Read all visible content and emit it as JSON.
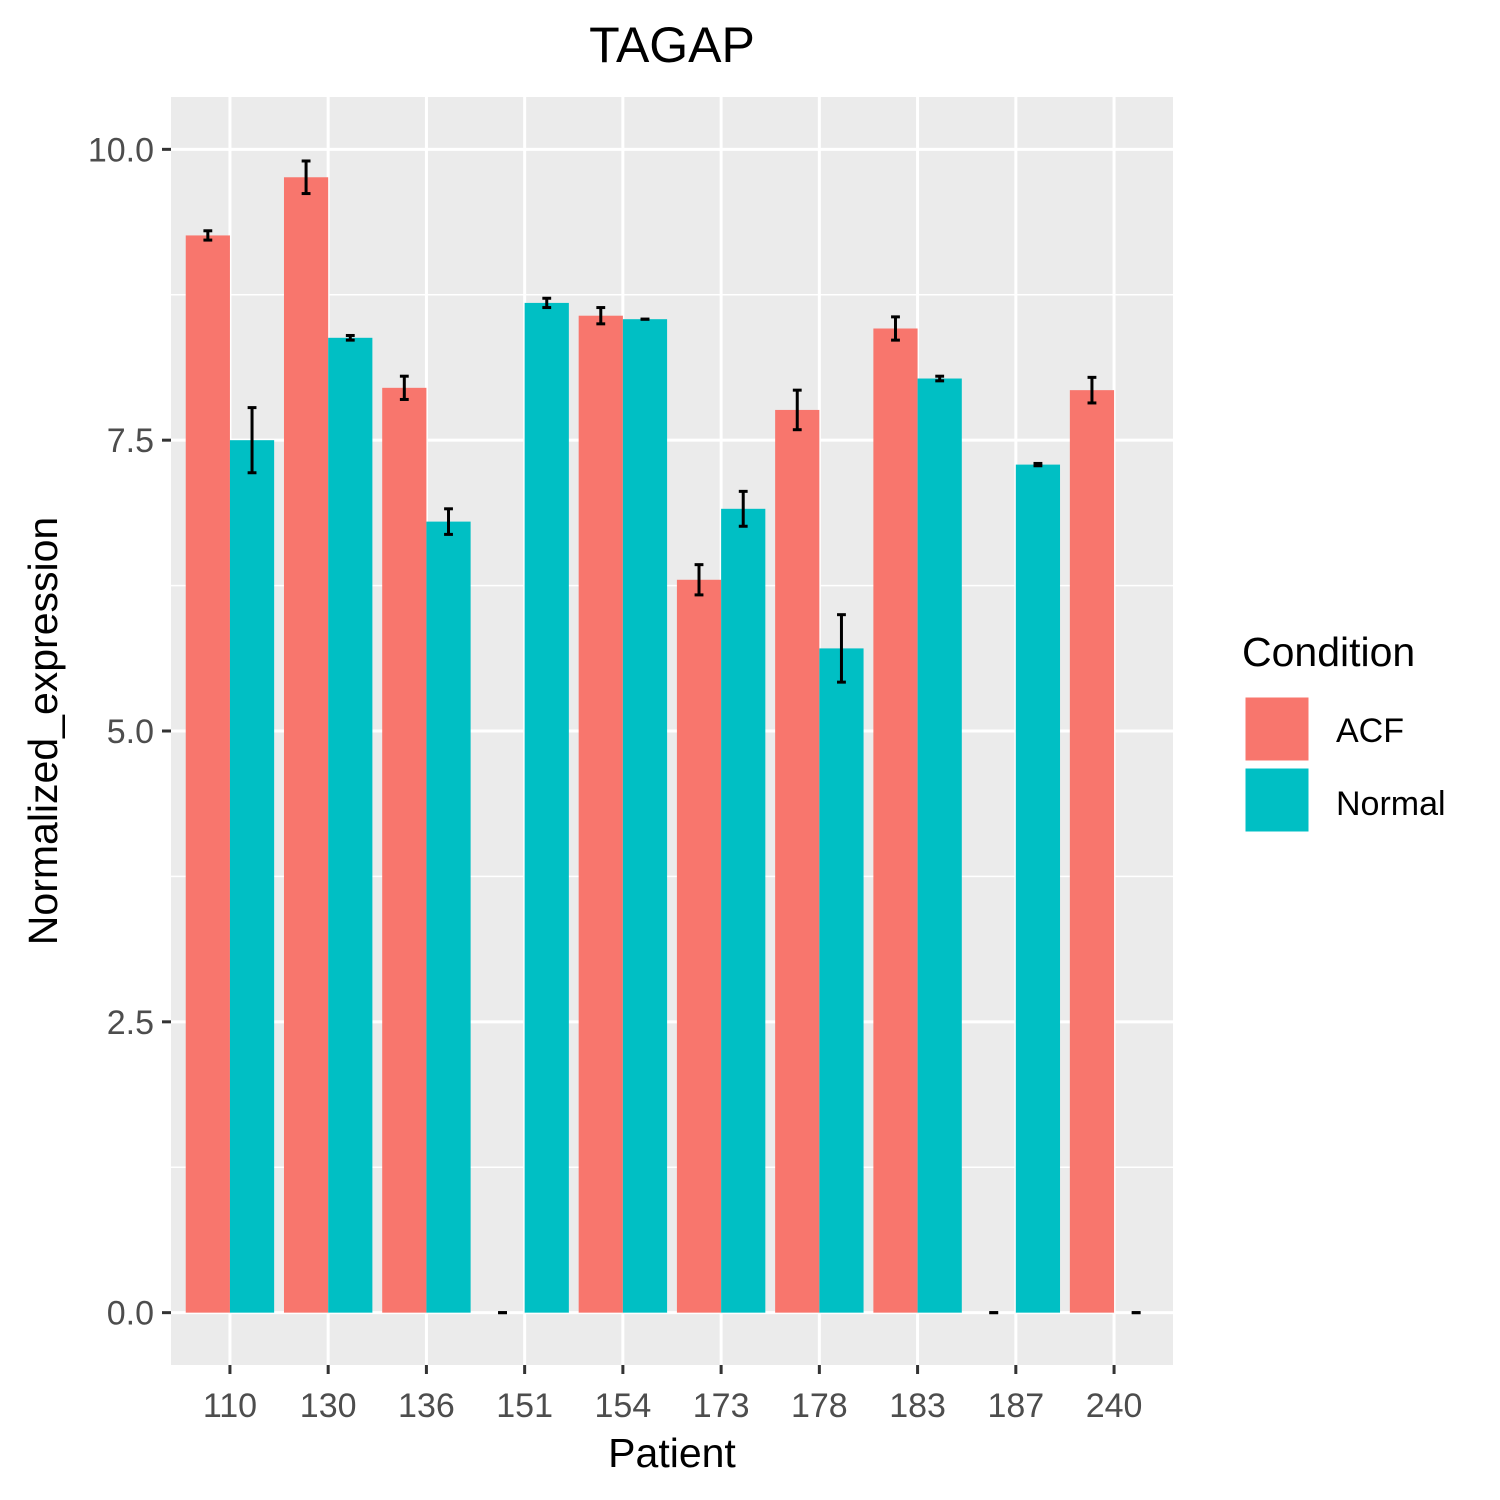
{
  "chart_data": {
    "type": "bar",
    "title": "TAGAP",
    "xlabel": "Patient",
    "ylabel": "Normalized_expression",
    "categories": [
      "110",
      "130",
      "136",
      "151",
      "154",
      "173",
      "178",
      "183",
      "187",
      "240"
    ],
    "ylim": [
      -0.45,
      10.45
    ],
    "yticks": [
      0.0,
      2.5,
      5.0,
      7.5,
      10.0
    ],
    "ytick_labels": [
      "0.0",
      "2.5",
      "5.0",
      "7.5",
      "10.0"
    ],
    "grid": true,
    "legend_position": "right",
    "series": [
      {
        "name": "ACF",
        "color": "#F8766D",
        "values": [
          9.26,
          9.76,
          7.95,
          0.0,
          8.57,
          6.3,
          7.76,
          8.46,
          0.0,
          7.93
        ],
        "errors": [
          0.04,
          0.14,
          0.1,
          0.0,
          0.07,
          0.13,
          0.17,
          0.1,
          0.0,
          0.11
        ]
      },
      {
        "name": "Normal",
        "color": "#00BFC4",
        "values": [
          7.5,
          8.38,
          6.8,
          8.68,
          8.54,
          6.91,
          5.71,
          8.03,
          7.29,
          0.0
        ],
        "errors": [
          0.28,
          0.02,
          0.11,
          0.04,
          0.0,
          0.15,
          0.29,
          0.02,
          0.01,
          0.0
        ]
      }
    ]
  },
  "legend": {
    "title": "Condition",
    "items": [
      "ACF",
      "Normal"
    ]
  },
  "colors": {
    "panel_background": "#EBEBEB",
    "grid_line": "#FFFFFF",
    "error_bar": "#000000"
  }
}
